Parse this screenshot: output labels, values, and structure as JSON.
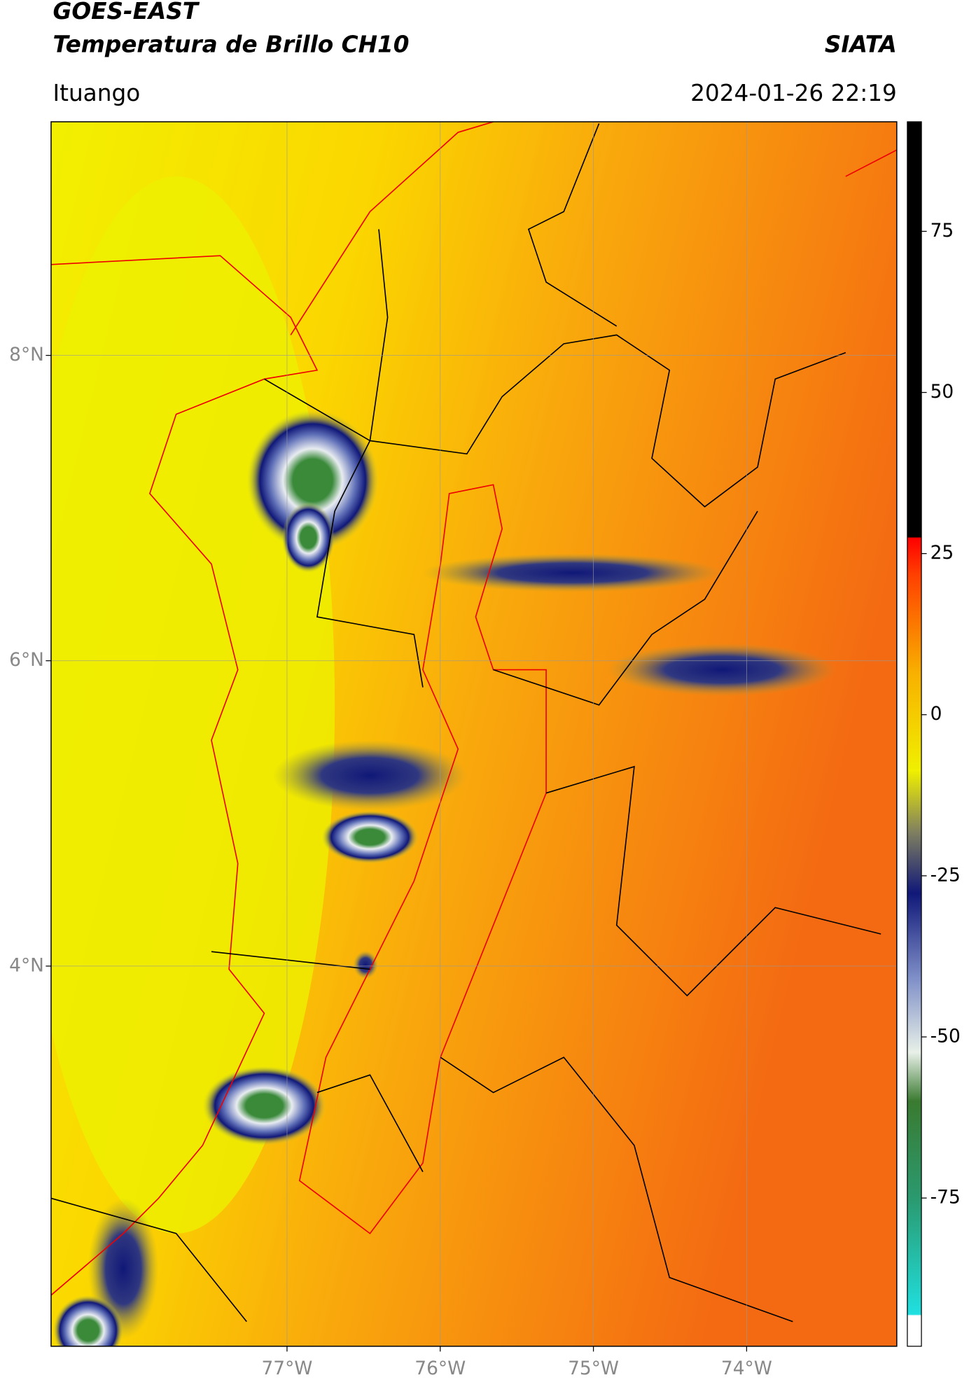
{
  "chart_data": {
    "type": "map",
    "title": "GOES-EAST",
    "subtitle": "Temperatura de Brillo CH10",
    "source": "SIATA",
    "region": "Ituango",
    "datetime": "2024-01-26 22:19",
    "xlim": [
      -78.54,
      -73.02
    ],
    "ylim": [
      1.51,
      9.53
    ],
    "xticks": [
      {
        "value": -77,
        "label": "77°W"
      },
      {
        "value": -76,
        "label": "76°W"
      },
      {
        "value": -75,
        "label": "75°W"
      },
      {
        "value": -74,
        "label": "74°W"
      }
    ],
    "yticks": [
      {
        "value": 4,
        "label": "4°N"
      },
      {
        "value": 6,
        "label": "6°N"
      },
      {
        "value": 8,
        "label": "8°N"
      }
    ],
    "grid": true,
    "colorbar": {
      "lim": [
        -98,
        92
      ],
      "ticks": [
        -75,
        -50,
        -25,
        0,
        25,
        50,
        75
      ]
    }
  }
}
